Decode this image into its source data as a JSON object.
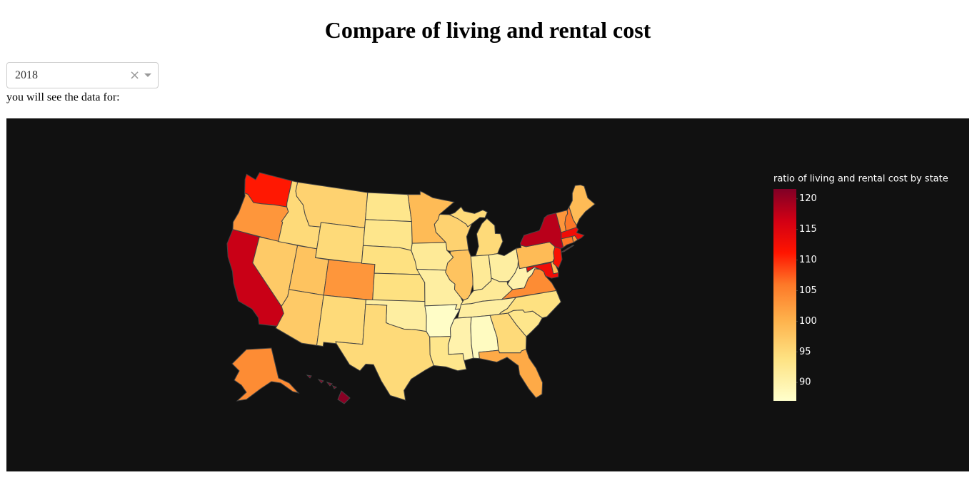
{
  "header": {
    "title": "Compare of living and rental cost"
  },
  "dropdown": {
    "value": "2018"
  },
  "prompt": "you will see the data for:",
  "chart_data": {
    "type": "choropleth",
    "colorbar": {
      "title": "ratio of living and rental cost by state",
      "range": [
        87,
        121.6
      ],
      "ticks": [
        90,
        95,
        100,
        105,
        110,
        115,
        120
      ]
    },
    "colorscale": [
      [
        0,
        "#ffffcc"
      ],
      [
        0.2,
        "#fee282"
      ],
      [
        0.38,
        "#feb24c"
      ],
      [
        0.55,
        "#fd7828"
      ],
      [
        0.7,
        "#ff1400"
      ],
      [
        0.85,
        "#d20014"
      ],
      [
        1,
        "#800026"
      ]
    ],
    "values": [
      111,
      103,
      117,
      97,
      95,
      96,
      95,
      98,
      103,
      97,
      95,
      93,
      93,
      94,
      94,
      91,
      99,
      92,
      91,
      87.5,
      93,
      96,
      98,
      95,
      95,
      92,
      91,
      92,
      91,
      90,
      88,
      95,
      101,
      93,
      94,
      104,
      90,
      99,
      113,
      99,
      112,
      118,
      103,
      106,
      99,
      113,
      103,
      106,
      104,
      121
    ]
  }
}
